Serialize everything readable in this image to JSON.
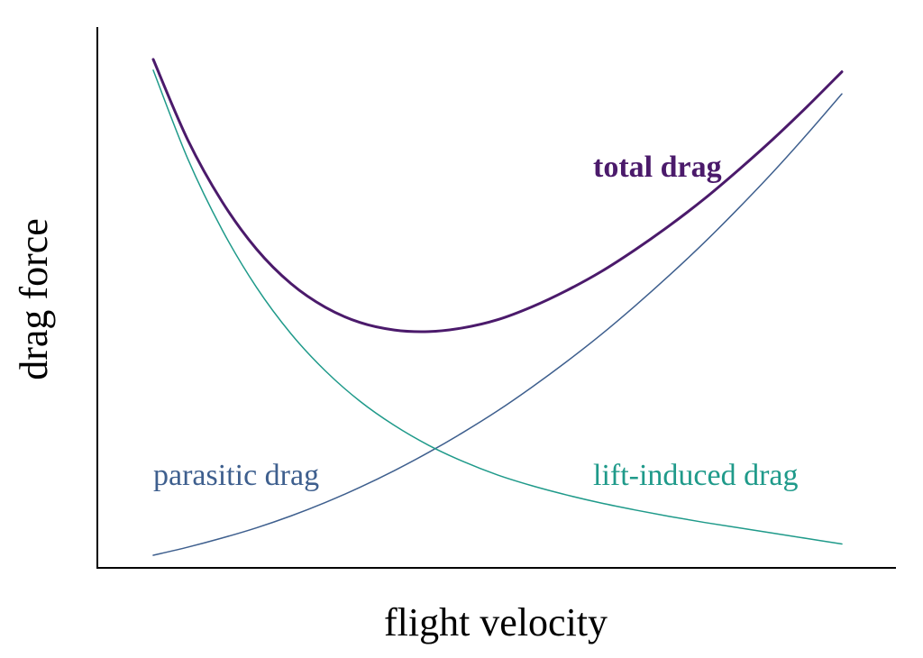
{
  "chart_data": {
    "type": "line",
    "xlabel": "flight velocity",
    "ylabel": "drag force",
    "xlim": [
      0,
      1
    ],
    "ylim": [
      0,
      1
    ],
    "grid": false,
    "ticks": false,
    "legend": "inline labels",
    "x": [
      0.0,
      0.05,
      0.1,
      0.15,
      0.2,
      0.25,
      0.3,
      0.35,
      0.4,
      0.45,
      0.5,
      0.55,
      0.6,
      0.65,
      0.7,
      0.75,
      0.8,
      0.85,
      0.9,
      0.95,
      1.0
    ],
    "series": [
      {
        "name": "parasitic drag",
        "color": "#3e5f8e",
        "stroke": 1.5,
        "values": [
          0.02,
          0.035,
          0.052,
          0.071,
          0.093,
          0.118,
          0.146,
          0.177,
          0.211,
          0.248,
          0.288,
          0.332,
          0.379,
          0.429,
          0.483,
          0.54,
          0.6,
          0.664,
          0.731,
          0.802,
          0.876
        ]
      },
      {
        "name": "lift-induced drag",
        "color": "#1f9a8a",
        "stroke": 1.5,
        "values": [
          0.92,
          0.756,
          0.624,
          0.517,
          0.431,
          0.362,
          0.306,
          0.261,
          0.224,
          0.194,
          0.169,
          0.149,
          0.132,
          0.117,
          0.104,
          0.092,
          0.081,
          0.071,
          0.061,
          0.051,
          0.041
        ]
      },
      {
        "name": "total drag",
        "color": "#4b1a6b",
        "stroke": 3,
        "values": [
          0.94,
          0.791,
          0.676,
          0.588,
          0.524,
          0.48,
          0.452,
          0.438,
          0.435,
          0.442,
          0.457,
          0.481,
          0.511,
          0.546,
          0.587,
          0.632,
          0.681,
          0.735,
          0.792,
          0.853,
          0.917
        ]
      }
    ]
  }
}
